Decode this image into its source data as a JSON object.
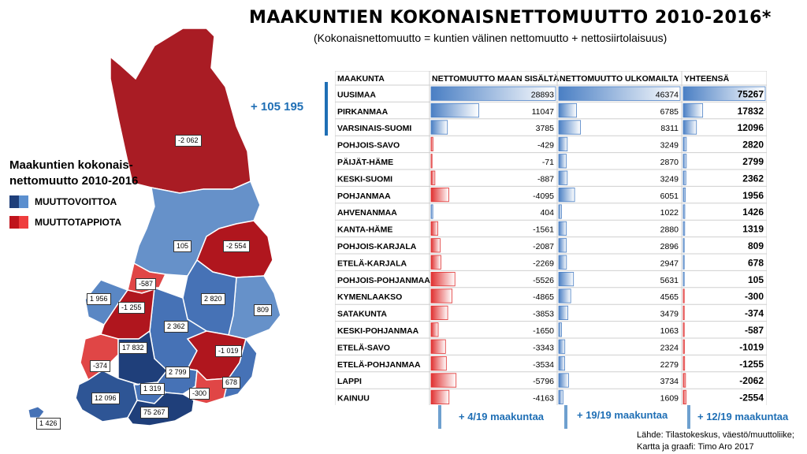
{
  "title": "MAAKUNTIEN KOKONAISNETTOMUUTTO 2010-2016*",
  "subtitle": "(Kokonaisnettomuutto = kuntien välinen nettomuutto + nettosiirtolaisuus)",
  "legend": {
    "title_line1": "Maakuntien kokonais-",
    "title_line2": "nettomuutto 2010-2016",
    "gain_label": "MUUTTOVOITTOA",
    "loss_label": "MUUTTOTAPPIOTA",
    "gain_colors": [
      "#1f3f7a",
      "#5b8fcf"
    ],
    "loss_colors": [
      "#c0141c",
      "#ef3d3d"
    ]
  },
  "map_labels": [
    "-2 062",
    "105",
    "-2 554",
    "-587",
    "1 956",
    "-1 255",
    "2 820",
    "809",
    "2 362",
    "17 832",
    "-1 019",
    "-374",
    "2 799",
    "1 319",
    "-300",
    "678",
    "12 096",
    "75 267",
    "1 426"
  ],
  "total_callout": "+ 105 195",
  "chart_data": {
    "type": "table",
    "columns": [
      "MAAKUNTA",
      "NETTOMUUTTO MAAN SISÄLTÄ",
      "NETTOMUUTTO ULKOMAILTA",
      "YHTEENSÄ"
    ],
    "categories": [
      "UUSIMAA",
      "PIRKANMAA",
      "VARSINAIS-SUOMI",
      "POHJOIS-SAVO",
      "PÄIJÄT-HÄME",
      "KESKI-SUOMI",
      "POHJANMAA",
      "AHVENANMAA",
      "KANTA-HÄME",
      "POHJOIS-KARJALA",
      "ETELÄ-KARJALA",
      "POHJOIS-POHJANMAA",
      "KYMENLAAKSO",
      "SATAKUNTA",
      "KESKI-POHJANMAA",
      "ETELÄ-SAVO",
      "ETELÄ-POHJANMAA",
      "LAPPI",
      "KAINUU"
    ],
    "series": [
      {
        "name": "NETTOMUUTTO MAAN SISÄLTÄ",
        "values": [
          28893,
          11047,
          3785,
          -429,
          -71,
          -887,
          -4095,
          404,
          -1561,
          -2087,
          -2269,
          -5526,
          -4865,
          -3853,
          -1650,
          -3343,
          -3534,
          -5796,
          -4163
        ]
      },
      {
        "name": "NETTOMUUTTO ULKOMAILTA",
        "values": [
          46374,
          6785,
          8311,
          3249,
          2870,
          3249,
          6051,
          1022,
          2880,
          2896,
          2947,
          5631,
          4565,
          3479,
          1063,
          2324,
          2279,
          3734,
          1609
        ]
      },
      {
        "name": "YHTEENSÄ",
        "values": [
          75267,
          17832,
          12096,
          2820,
          2799,
          2362,
          1956,
          1426,
          1319,
          809,
          678,
          105,
          -300,
          -374,
          -587,
          -1019,
          -1255,
          -2062,
          -2554
        ]
      }
    ],
    "positive_color": "#4a7fc4",
    "negative_color": "#e03030"
  },
  "footer": {
    "col1": "+ 4/19 maakuntaa",
    "col2": "+ 19/19 maakuntaa",
    "col3": "+ 12/19 maakuntaa"
  },
  "source_line1": "Lähde: Tilastokeskus, väestö/muuttoliike;",
  "source_line2": "Kartta ja graafi: Timo Aro 2017"
}
